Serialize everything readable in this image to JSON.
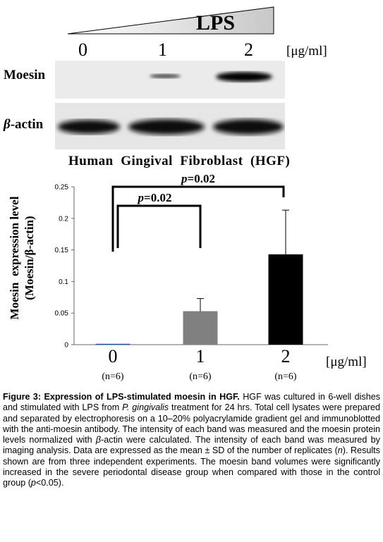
{
  "blot": {
    "lps_label": "LPS",
    "lanes": [
      "0",
      "1",
      "2"
    ],
    "unit": "[μg/ml]",
    "moesin_label": "Moesin",
    "actin_label_greek": "β",
    "actin_label_suffix": "-actin",
    "cell_type": "Human  Gingival  Fibroblast  (HGF)"
  },
  "chart_data": {
    "type": "bar",
    "categories": [
      "0",
      "1",
      "2"
    ],
    "values": [
      0.001,
      0.053,
      0.143
    ],
    "errors": [
      0.0,
      0.02,
      0.07
    ],
    "n_labels": [
      "(n=6)",
      "(n=6)",
      "(n=6)"
    ],
    "colors": [
      "#1f4e9c",
      "#808080",
      "#000000"
    ],
    "ylabel_line1": "Moesin  expression level",
    "ylabel_line2": "(Moesin/β-actin)",
    "xunit": "[μg/ml]",
    "ylim": [
      0,
      0.25
    ],
    "yticks": [
      "0",
      "0.05",
      "0.1",
      "0.15",
      "0.2",
      "0.25"
    ],
    "brackets": [
      {
        "from": 0,
        "to": 1,
        "label_italic": "p",
        "label_rest": "=0.02"
      },
      {
        "from": 0,
        "to": 2,
        "label_italic": "p",
        "label_rest": "=0.02"
      }
    ]
  },
  "caption": {
    "title": "Figure 3: Expression of LPS-stimulated moesin in HGF.",
    "t1": " HGF was cultured in 6-well dishes and stimulated with LPS from ",
    "i1": "P. gingivalis",
    "t2": " treatment for 24 hrs. Total cell lysates were prepared and separated by electrophoresis on a 10–20% polyacrylamide gradient gel and immunoblotted with the anti-moesin antibody. The intensity of each band was measured and the moesin protein levels normalized with ",
    "i2": "β",
    "t3": "-actin were calculated. The intensity of each band was measured by imaging analysis. Data are expressed as the mean ± SD of the number of replicates (",
    "i3": "n",
    "t4": "). Results shown are from three independent experiments. The moesin band volumes were significantly increased in the severe periodontal disease group when compared with those in the control group (",
    "i4": "p",
    "t5": "<0.05)."
  }
}
